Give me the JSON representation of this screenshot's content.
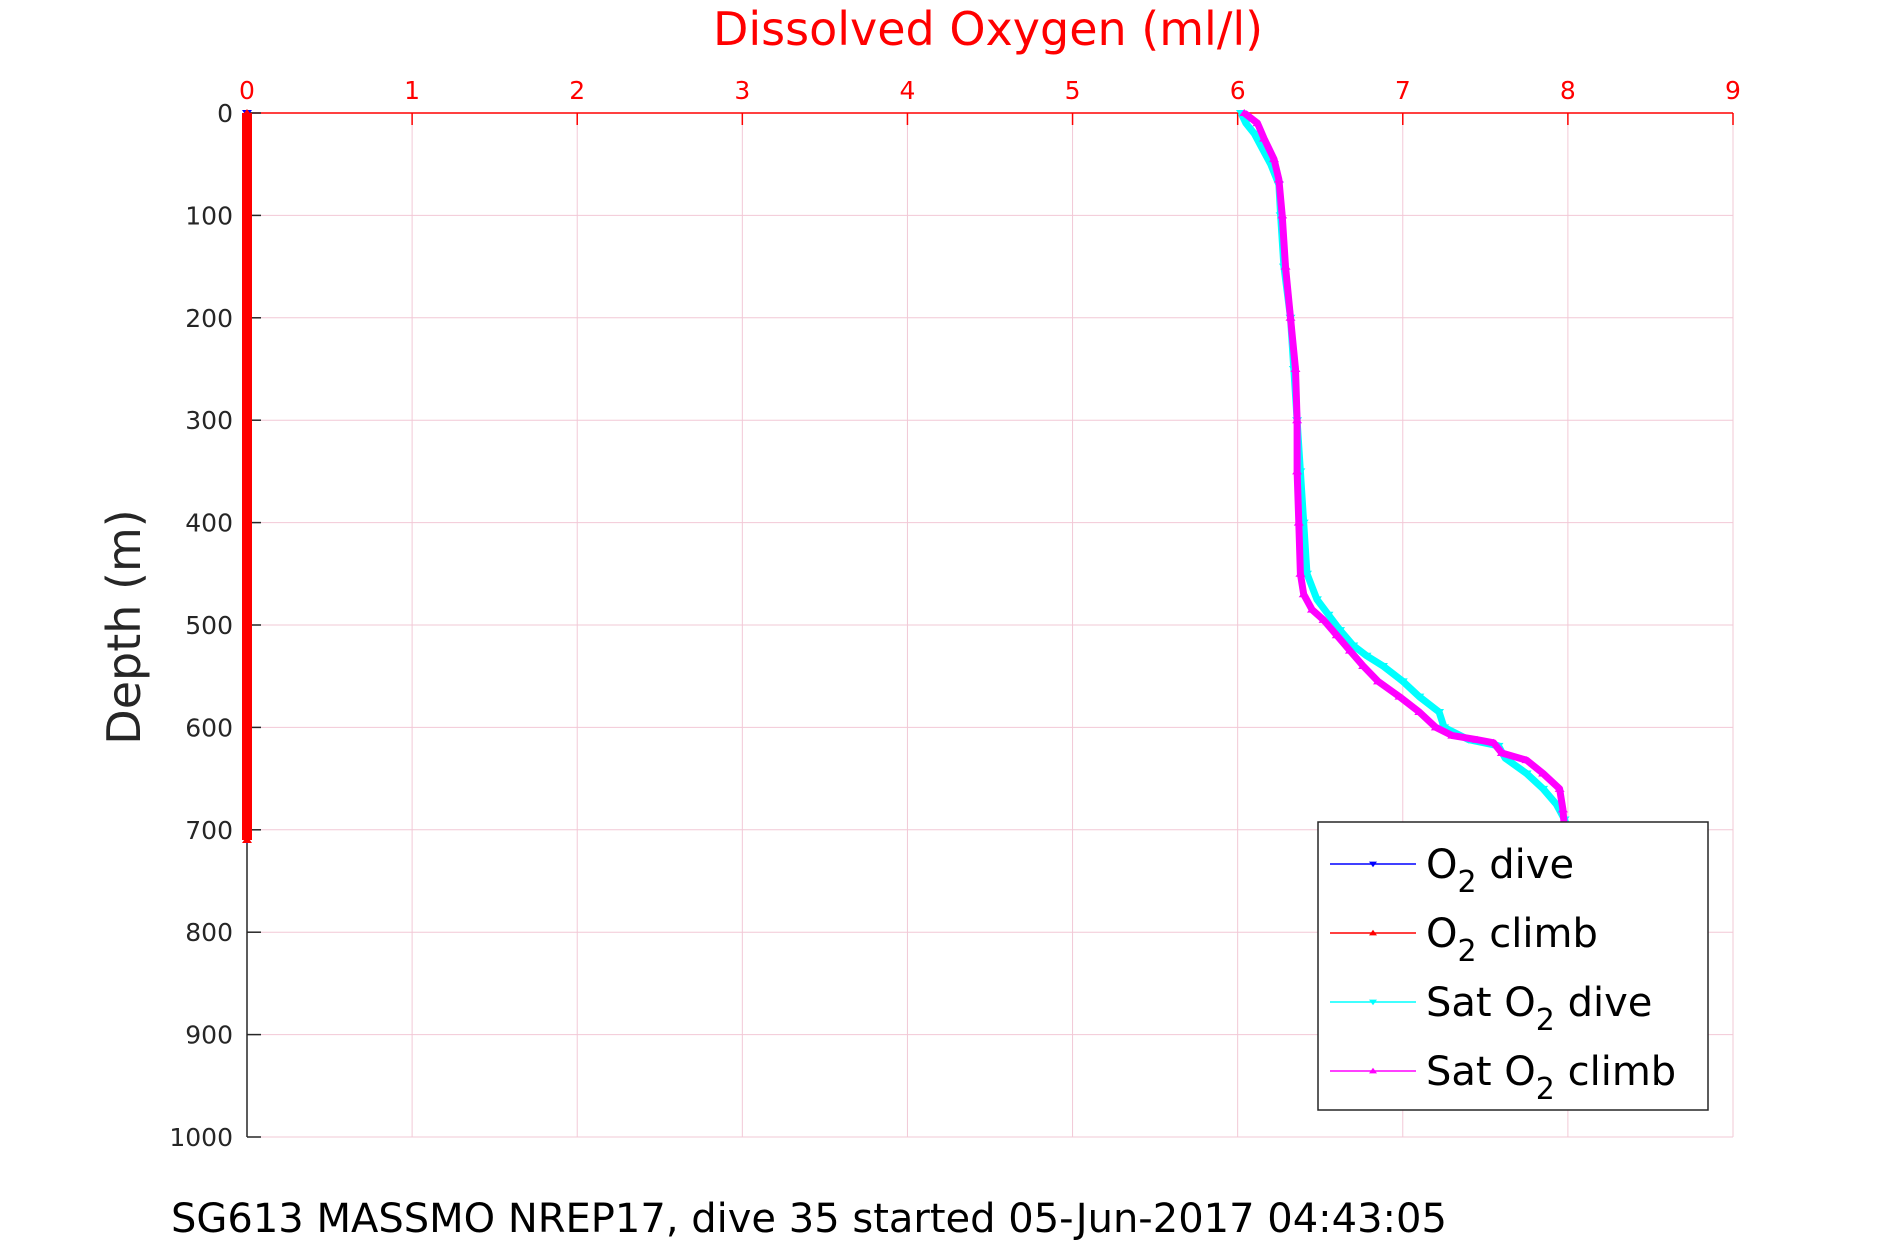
{
  "chart_data": {
    "type": "line",
    "title": "Dissolved Oxygen (ml/l)",
    "xlabel": "Dissolved Oxygen (ml/l)",
    "ylabel": "Depth (m)",
    "caption": "SG613 MASSMO NREP17, dive 35 started 05-Jun-2017 04:43:05",
    "x_axis_position": "top",
    "y_axis_reversed": true,
    "xlim": [
      0,
      9
    ],
    "ylim": [
      0,
      1000
    ],
    "xticks": [
      "0",
      "1",
      "2",
      "3",
      "4",
      "5",
      "6",
      "7",
      "8",
      "9"
    ],
    "yticks": [
      "0",
      "100",
      "200",
      "300",
      "400",
      "500",
      "600",
      "700",
      "800",
      "900",
      "1000"
    ],
    "grid": true,
    "legend_position": "bottom-right",
    "colors": {
      "title": "#ff0000",
      "x_axis": "#ff0000",
      "grid": "#f2c8d6",
      "o2_dive": "#0000ff",
      "o2_climb": "#ff0000",
      "sat_dive": "#00ffff",
      "sat_climb": "#ff00ff"
    },
    "series": [
      {
        "name": "O2 dive",
        "legend_main": "O",
        "legend_sub": "2",
        "legend_post": " dive",
        "legend_pre": "",
        "color": "#0000ff",
        "marker": "triangle-down",
        "points": [
          [
            0,
            0
          ],
          [
            0,
            100
          ],
          [
            0,
            200
          ],
          [
            0,
            300
          ],
          [
            0,
            400
          ],
          [
            0,
            500
          ],
          [
            0,
            600
          ],
          [
            0,
            700
          ],
          [
            0,
            710
          ]
        ]
      },
      {
        "name": "O2 climb",
        "legend_main": "O",
        "legend_sub": "2",
        "legend_post": " climb",
        "legend_pre": "",
        "color": "#ff0000",
        "marker": "triangle-up",
        "points": [
          [
            0,
            0
          ],
          [
            0,
            100
          ],
          [
            0,
            200
          ],
          [
            0,
            300
          ],
          [
            0,
            400
          ],
          [
            0,
            500
          ],
          [
            0,
            600
          ],
          [
            0,
            700
          ],
          [
            0,
            710
          ]
        ]
      },
      {
        "name": "Sat O2 dive",
        "legend_main": "O",
        "legend_sub": "2",
        "legend_post": " dive",
        "legend_pre": "Sat ",
        "color": "#00ffff",
        "marker": "triangle-down",
        "points": [
          [
            6.02,
            0
          ],
          [
            6.05,
            10
          ],
          [
            6.1,
            20
          ],
          [
            6.15,
            35
          ],
          [
            6.2,
            50
          ],
          [
            6.25,
            70
          ],
          [
            6.26,
            100
          ],
          [
            6.28,
            150
          ],
          [
            6.32,
            200
          ],
          [
            6.34,
            250
          ],
          [
            6.36,
            300
          ],
          [
            6.38,
            350
          ],
          [
            6.4,
            400
          ],
          [
            6.42,
            450
          ],
          [
            6.48,
            475
          ],
          [
            6.55,
            490
          ],
          [
            6.62,
            505
          ],
          [
            6.7,
            520
          ],
          [
            6.78,
            530
          ],
          [
            6.88,
            540
          ],
          [
            7.0,
            555
          ],
          [
            7.1,
            570
          ],
          [
            7.22,
            585
          ],
          [
            7.25,
            600
          ],
          [
            7.4,
            612
          ],
          [
            7.58,
            618
          ],
          [
            7.62,
            630
          ],
          [
            7.75,
            645
          ],
          [
            7.85,
            660
          ],
          [
            7.93,
            675
          ],
          [
            7.98,
            690
          ],
          [
            8.0,
            700
          ]
        ]
      },
      {
        "name": "Sat O2 climb",
        "legend_main": "O",
        "legend_sub": "2",
        "legend_post": " climb",
        "legend_pre": "Sat ",
        "color": "#ff00ff",
        "marker": "triangle-up",
        "points": [
          [
            6.04,
            0
          ],
          [
            6.12,
            10
          ],
          [
            6.16,
            25
          ],
          [
            6.22,
            45
          ],
          [
            6.25,
            65
          ],
          [
            6.27,
            100
          ],
          [
            6.29,
            150
          ],
          [
            6.32,
            200
          ],
          [
            6.35,
            250
          ],
          [
            6.36,
            300
          ],
          [
            6.36,
            350
          ],
          [
            6.37,
            400
          ],
          [
            6.38,
            450
          ],
          [
            6.4,
            470
          ],
          [
            6.45,
            485
          ],
          [
            6.52,
            495
          ],
          [
            6.6,
            510
          ],
          [
            6.68,
            525
          ],
          [
            6.76,
            540
          ],
          [
            6.85,
            555
          ],
          [
            6.98,
            570
          ],
          [
            7.1,
            585
          ],
          [
            7.2,
            600
          ],
          [
            7.3,
            608
          ],
          [
            7.45,
            612
          ],
          [
            7.55,
            615
          ],
          [
            7.6,
            625
          ],
          [
            7.75,
            632
          ],
          [
            7.85,
            645
          ],
          [
            7.95,
            660
          ],
          [
            7.97,
            680
          ],
          [
            7.98,
            700
          ]
        ]
      }
    ]
  }
}
